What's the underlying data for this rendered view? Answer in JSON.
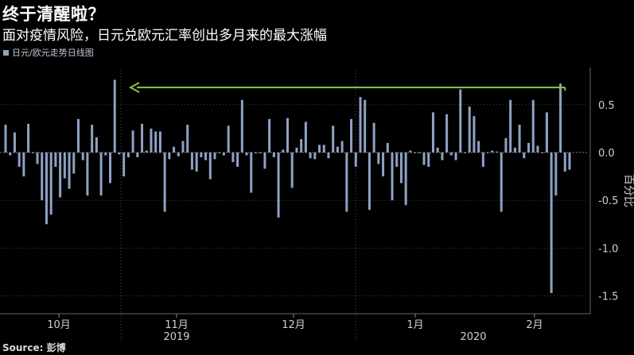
{
  "header": {
    "title": "终于清醒啦？",
    "subtitle": "面对疫情风险，日元兑欧元汇率创出多月来的最大涨幅"
  },
  "legend": {
    "label": "日元/欧元走势日线图"
  },
  "source": "Source: 彭博",
  "colors": {
    "bar": "#8fa2c4",
    "arrow": "#8dc63f",
    "grid": "#444444",
    "axis_text": "#d0d0d0"
  },
  "chart_data": {
    "type": "bar",
    "title": "终于清醒啦？",
    "subtitle": "面对疫情风险，日元兑欧元汇率创出多月来的最大涨幅",
    "ylabel": "百分比",
    "ylim": [
      -1.5,
      0.8
    ],
    "yticks": [
      0.5,
      0.0,
      -0.5,
      -1.0,
      -1.5
    ],
    "ytick_labels": [
      "0.5",
      "0.0",
      "-0.5",
      "-1.0",
      "-1.5"
    ],
    "month_labels": [
      "10月",
      "11月",
      "12月",
      "1月",
      "2月"
    ],
    "year_labels": [
      "2019",
      "2020"
    ],
    "series": [
      {
        "name": "日元/欧元走势日线图",
        "values": [
          0.29,
          -0.03,
          0.21,
          -0.15,
          -0.25,
          0.3,
          0.0,
          -0.12,
          -0.5,
          -0.75,
          -0.65,
          -0.15,
          -0.47,
          -0.27,
          -0.38,
          -0.22,
          0.35,
          -0.08,
          -0.45,
          0.29,
          0.16,
          -0.45,
          -0.03,
          -0.32,
          0.76,
          -0.02,
          -0.25,
          -0.05,
          0.23,
          -0.05,
          0.3,
          0.02,
          0.25,
          0.22,
          0.22,
          -0.62,
          -0.07,
          0.06,
          -0.04,
          0.12,
          0.29,
          -0.18,
          -0.2,
          -0.05,
          -0.08,
          -0.28,
          -0.07,
          0.0,
          -0.03,
          0.28,
          -0.1,
          -0.15,
          0.55,
          -0.03,
          -0.42,
          -0.01,
          0.0,
          -0.17,
          0.35,
          -0.05,
          -0.68,
          0.03,
          0.36,
          -0.37,
          0.05,
          0.14,
          0.32,
          -0.06,
          -0.07,
          0.08,
          0.08,
          -0.06,
          0.28,
          0.06,
          0.12,
          -0.62,
          0.35,
          -0.15,
          0.58,
          0.55,
          -0.6,
          0.31,
          -0.12,
          -0.25,
          0.1,
          -0.5,
          -0.15,
          -0.32,
          -0.55,
          0.02,
          0.0,
          0.0,
          -0.13,
          -0.15,
          0.42,
          0.05,
          -0.08,
          0.4,
          -0.03,
          -0.08,
          0.66,
          0.0,
          0.48,
          0.38,
          0.12,
          -0.15,
          0.0,
          0.02,
          0.01,
          -0.62,
          0.15,
          0.55,
          0.05,
          0.29,
          -0.06,
          0.1,
          0.55,
          0.07,
          0.0,
          0.42,
          -1.47,
          -0.45,
          0.72,
          -0.2,
          -0.18
        ]
      }
    ]
  }
}
